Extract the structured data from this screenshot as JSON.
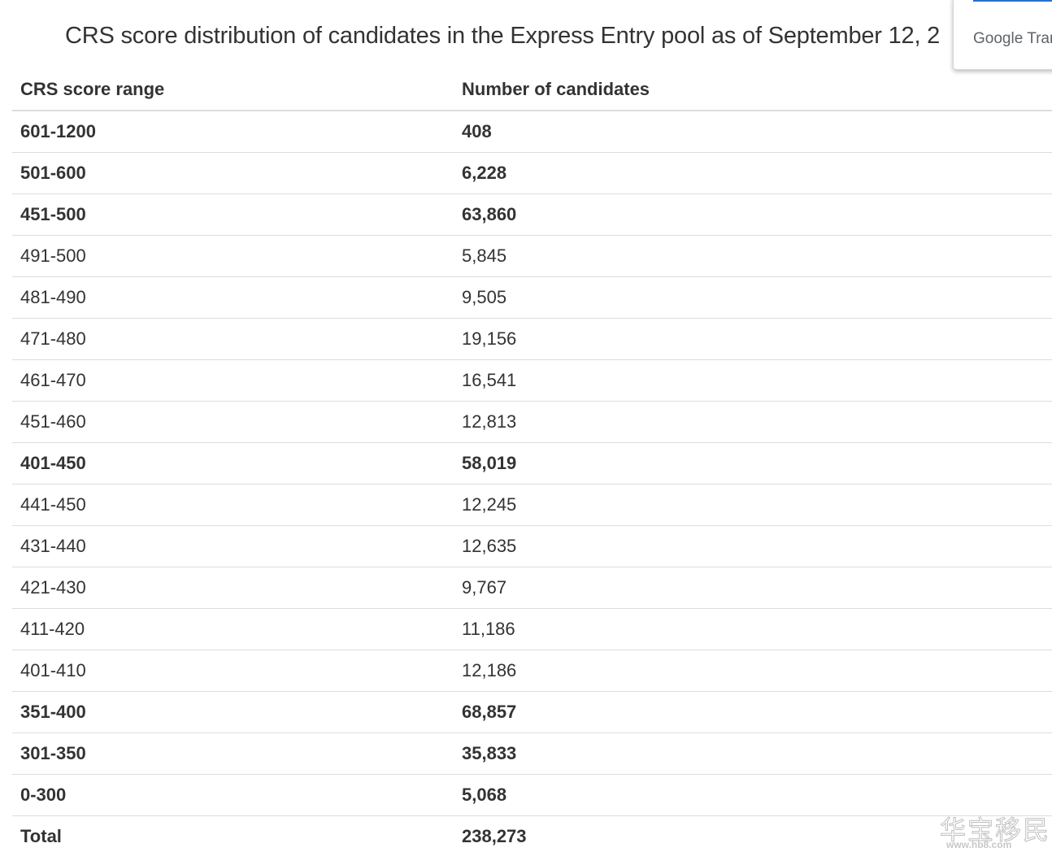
{
  "caption": "CRS score distribution of candidates in the Express Entry pool as of September 12, 2",
  "table": {
    "headers": [
      "CRS score range",
      "Number of candidates"
    ],
    "rows": [
      {
        "range": "601-1200",
        "count": "408",
        "bold": true
      },
      {
        "range": "501-600",
        "count": "6,228",
        "bold": true
      },
      {
        "range": "451-500",
        "count": "63,860",
        "bold": true
      },
      {
        "range": "491-500",
        "count": "5,845",
        "bold": false
      },
      {
        "range": "481-490",
        "count": "9,505",
        "bold": false
      },
      {
        "range": "471-480",
        "count": "19,156",
        "bold": false
      },
      {
        "range": "461-470",
        "count": "16,541",
        "bold": false
      },
      {
        "range": "451-460",
        "count": "12,813",
        "bold": false
      },
      {
        "range": "401-450",
        "count": "58,019",
        "bold": true
      },
      {
        "range": "441-450",
        "count": "12,245",
        "bold": false
      },
      {
        "range": "431-440",
        "count": "12,635",
        "bold": false
      },
      {
        "range": "421-430",
        "count": "9,767",
        "bold": false
      },
      {
        "range": "411-420",
        "count": "11,186",
        "bold": false
      },
      {
        "range": "401-410",
        "count": "12,186",
        "bold": false
      },
      {
        "range": "351-400",
        "count": "68,857",
        "bold": true
      },
      {
        "range": "301-350",
        "count": "35,833",
        "bold": true
      },
      {
        "range": "0-300",
        "count": "5,068",
        "bold": true
      }
    ],
    "total": {
      "label": "Total",
      "value": "238,273"
    }
  },
  "google_translate": {
    "label": "Google Tran",
    "accent_color": "#1a73e8"
  },
  "watermark": {
    "text": "华宝移民",
    "url": "www.hb8.com"
  }
}
